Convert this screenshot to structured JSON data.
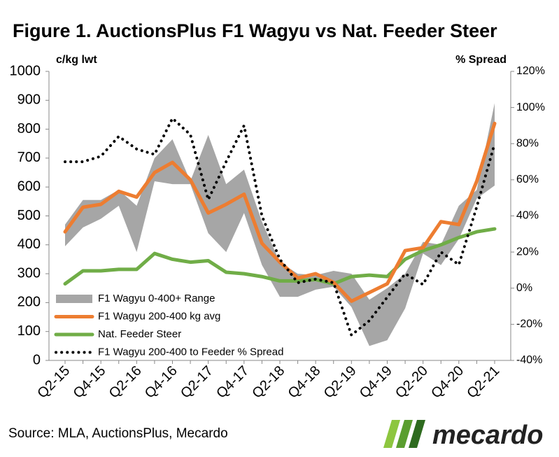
{
  "chart_data": {
    "type": "line",
    "title": "Figure 1. AuctionsPlus F1 Wagyu vs Nat. Feeder Steer",
    "y_label": "c/kg lwt",
    "y2_label": "% Spread",
    "source": "Source: MLA, AuctionsPlus,  Mecardo",
    "logo": "mecardo",
    "categories": [
      "Q2-15",
      null,
      "Q4-15",
      null,
      "Q2-16",
      null,
      "Q4-16",
      null,
      "Q2-17",
      null,
      "Q4-17",
      null,
      "Q2-18",
      null,
      "Q4-18",
      null,
      "Q2-19",
      null,
      "Q4-19",
      null,
      "Q2-20",
      null,
      "Q4-20",
      null,
      "Q2-21"
    ],
    "range": {
      "name": "F1 Wagyu 0-400+ Range",
      "color": "#a6a6a6",
      "high": [
        470,
        555,
        555,
        590,
        535,
        700,
        765,
        620,
        780,
        610,
        660,
        480,
        340,
        300,
        295,
        310,
        300,
        210,
        250,
        300,
        410,
        400,
        535,
        590,
        890
      ],
      "low": [
        395,
        460,
        490,
        535,
        375,
        620,
        610,
        610,
        440,
        375,
        510,
        330,
        220,
        220,
        245,
        255,
        185,
        50,
        70,
        180,
        370,
        330,
        420,
        560,
        605
      ]
    },
    "series": [
      {
        "name": "F1 Wagyu 200-400 kg avg",
        "color": "#ed7d31",
        "values": [
          445,
          530,
          540,
          585,
          565,
          650,
          685,
          625,
          510,
          540,
          575,
          405,
          340,
          285,
          300,
          270,
          205,
          235,
          265,
          380,
          390,
          480,
          470,
          620,
          820
        ]
      },
      {
        "name": "Nat. Feeder Steer",
        "color": "#70ad47",
        "values": [
          265,
          310,
          310,
          315,
          315,
          370,
          350,
          340,
          345,
          305,
          300,
          290,
          275,
          275,
          280,
          265,
          290,
          295,
          290,
          350,
          380,
          400,
          425,
          445,
          455
        ]
      },
      {
        "name": "F1 Wagyu 200-400 to Feeder % Spread",
        "color": "#000000",
        "axis": "y2",
        "values": [
          70,
          70,
          73,
          84,
          77,
          74,
          94,
          85,
          49,
          70,
          90,
          40,
          16,
          3,
          5,
          3,
          -26,
          -18,
          -5,
          8,
          2,
          20,
          13,
          45,
          80
        ]
      }
    ],
    "ylim": [
      0,
      1000
    ],
    "yticks": [
      0,
      100,
      200,
      300,
      400,
      500,
      600,
      700,
      800,
      900,
      1000
    ],
    "y2lim": [
      -40,
      120
    ],
    "y2ticks": [
      {
        "value": -40,
        "label": "-40%"
      },
      {
        "value": -20,
        "label": "-20%"
      },
      {
        "value": 0,
        "label": "0%"
      },
      {
        "value": 20,
        "label": "20%"
      },
      {
        "value": 40,
        "label": "40%"
      },
      {
        "value": 60,
        "label": "60%"
      },
      {
        "value": 80,
        "label": "80%"
      },
      {
        "value": 100,
        "label": "100%"
      },
      {
        "value": 120,
        "label": "120%"
      }
    ],
    "legend": "lower left"
  }
}
